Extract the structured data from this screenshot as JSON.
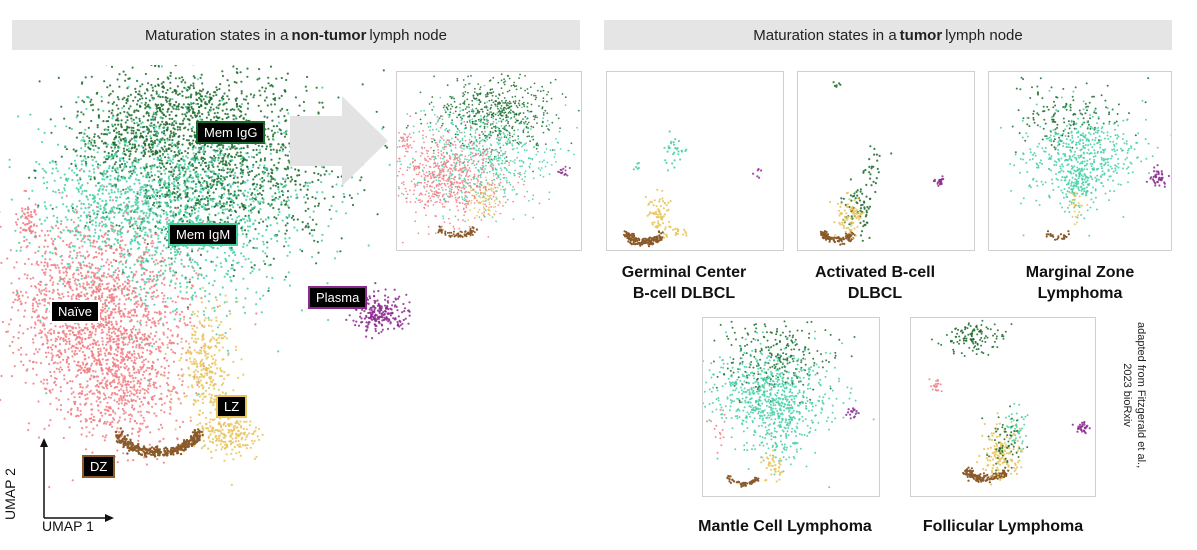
{
  "headers": {
    "left": {
      "pre": "Maturation states in a",
      "bold": "non-tumor",
      "post": "lymph node"
    },
    "right": {
      "pre": "Maturation states in a",
      "bold": "tumor",
      "post": "lymph node"
    }
  },
  "labels": {
    "mem_igg": "Mem IgG",
    "mem_igm": "Mem IgM",
    "naive": "Naïve",
    "plasma": "Plasma",
    "lz": "LZ",
    "dz": "DZ"
  },
  "colors": {
    "mem_igg": "#1a6b2a",
    "mem_igm": "#44cfa6",
    "naive": "#f07d82",
    "plasma": "#8a2a8e",
    "lz": "#e8c35a",
    "dz": "#8a5a2a"
  },
  "axes": {
    "x": "UMAP 1",
    "y": "UMAP 2"
  },
  "panels": [
    {
      "line1": "Germinal Center",
      "line2": "B-cell DLBCL"
    },
    {
      "line1": "Activated B-cell",
      "line2": "DLBCL"
    },
    {
      "line1": "Marginal Zone",
      "line2": "Lymphoma"
    },
    {
      "line1": "Mantle Cell Lymphoma",
      "line2": ""
    },
    {
      "line1": "Follicular Lymphoma",
      "line2": ""
    }
  ],
  "citation": {
    "line1": "adapted from Fitzgerald et al.,",
    "line2": "2023 bioRxiv"
  }
}
